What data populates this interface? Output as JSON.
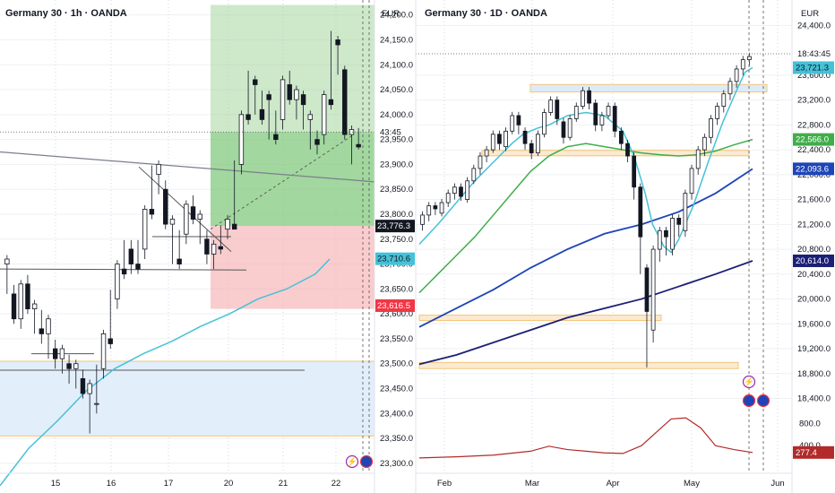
{
  "colors": {
    "cyan": "#45c1d8",
    "green": "#3fae49",
    "blue": "#1e44b8",
    "navy": "#1b1f75",
    "red": "#f23645",
    "osc": "#b22a2a",
    "target_zone": "#a5d69f",
    "stop_zone": "#f7b6b9",
    "zone_fill": "#e3eefb",
    "zone_border": "#f2c57a",
    "candle": "#131722"
  },
  "chart_data": [
    {
      "type": "candlestick",
      "title": "Germany 30 · 1h · OANDA",
      "currency": "EUR",
      "ylim": [
        23280,
        24230
      ],
      "y_ticks": [
        "24,200.0",
        "24,150.0",
        "24,100.0",
        "24,050.0",
        "24,000.0",
        "23,950.0",
        "23,900.0",
        "23,850.0",
        "23,800.0",
        "23,750.0",
        "23,700.0",
        "23,650.0",
        "23,600.0",
        "23,550.0",
        "23,500.0",
        "23,450.0",
        "23,400.0",
        "23,350.0",
        "23,300.0"
      ],
      "x_ticks": [
        "15",
        "16",
        "17",
        "20",
        "21",
        "22"
      ],
      "price_labels": [
        {
          "text": "43:45",
          "value": 23965
        },
        {
          "text": "23,776.3",
          "value": 23776.3
        },
        {
          "text": "23,710.6",
          "value": 23710.6
        },
        {
          "text": "23,616.5",
          "value": 23616.5
        }
      ],
      "position": {
        "entry": 23776.3,
        "target": 24220,
        "stop": 23610
      },
      "ma_cyan": [
        [
          0,
          23255
        ],
        [
          0.08,
          23330
        ],
        [
          0.16,
          23385
        ],
        [
          0.24,
          23445
        ],
        [
          0.32,
          23490
        ],
        [
          0.4,
          23520
        ],
        [
          0.48,
          23545
        ],
        [
          0.56,
          23575
        ],
        [
          0.64,
          23600
        ],
        [
          0.72,
          23630
        ],
        [
          0.8,
          23650
        ],
        [
          0.88,
          23680
        ],
        [
          0.92,
          23710
        ]
      ],
      "candles": [
        [
          23700,
          23710,
          23650,
          23640
        ],
        [
          23640,
          23650,
          23590,
          23580
        ],
        [
          23590,
          23660,
          23590,
          23570
        ],
        [
          23660,
          23670,
          23610,
          23600
        ],
        [
          23610,
          23620,
          23570,
          23560
        ],
        [
          23570,
          23600,
          23560,
          23540
        ],
        [
          23560,
          23590,
          23530,
          23510
        ],
        [
          23530,
          23540,
          23510,
          23490
        ],
        [
          23510,
          23530,
          23500,
          23480
        ],
        [
          23500,
          23510,
          23490,
          23460
        ],
        [
          23490,
          23500,
          23470,
          23450
        ],
        [
          23470,
          23480,
          23440,
          23430
        ],
        [
          23440,
          23460,
          23420,
          23360
        ],
        [
          23420,
          23490,
          23420,
          23400
        ],
        [
          23490,
          23560,
          23480,
          23470
        ],
        [
          23550,
          23640,
          23540,
          23530
        ],
        [
          23630,
          23700,
          23620,
          23610
        ],
        [
          23690,
          23740,
          23680,
          23670
        ],
        [
          23730,
          23700,
          23740,
          23680
        ],
        [
          23700,
          23740,
          23690,
          23680
        ],
        [
          23730,
          23810,
          23720,
          23710
        ],
        [
          23810,
          23890,
          23800,
          23790
        ],
        [
          23880,
          23900,
          23850,
          23840
        ],
        [
          23850,
          23860,
          23780,
          23770
        ],
        [
          23780,
          23790,
          23710,
          23700
        ],
        [
          23710,
          23760,
          23700,
          23690
        ],
        [
          23760,
          23820,
          23750,
          23740
        ],
        [
          23815,
          23830,
          23790,
          23780
        ],
        [
          23790,
          23800,
          23750,
          23740
        ],
        [
          23750,
          23760,
          23720,
          23700
        ],
        [
          23720,
          23740,
          23700,
          23690
        ],
        [
          23735,
          23770,
          23730,
          23720
        ],
        [
          23770,
          23790,
          23760,
          23750
        ],
        [
          23780,
          23900,
          23770,
          23770
        ],
        [
          23900,
          24000,
          23890,
          23880
        ],
        [
          24000,
          24080,
          23990,
          23980
        ],
        [
          24070,
          24060,
          24010,
          24000
        ],
        [
          24010,
          24040,
          23990,
          23980
        ],
        [
          24040,
          24030,
          23960,
          23950
        ],
        [
          23960,
          24000,
          23950,
          23940
        ],
        [
          23990,
          24070,
          23980,
          23970
        ],
        [
          24060,
          24080,
          24030,
          24020
        ],
        [
          24030,
          24050,
          24000,
          23990
        ],
        [
          24040,
          23990,
          24020,
          23970
        ],
        [
          23990,
          24000,
          23950,
          23930
        ],
        [
          23950,
          23960,
          23940,
          23920
        ],
        [
          23960,
          24040,
          23950,
          23940
        ],
        [
          24030,
          24160,
          24020,
          24010
        ],
        [
          24150,
          24140,
          24090,
          24080
        ],
        [
          24090,
          23960,
          23960,
          23950
        ],
        [
          23960,
          23970,
          23940,
          23900
        ],
        [
          23940,
          23965,
          23935,
          23930
        ]
      ]
    },
    {
      "type": "candlestick",
      "title": "Germany 30 · 1D · OANDA",
      "currency": "EUR",
      "ylim": [
        18350,
        24550
      ],
      "y_ticks": [
        "24,400.0",
        "23,600.0",
        "23,200.0",
        "22,800.0",
        "22,400.0",
        "22,000.0",
        "21,600.0",
        "21,200.0",
        "20,800.0",
        "20,400.0",
        "20,000.0",
        "19,600.0",
        "19,200.0",
        "18,800.0",
        "18,400.0"
      ],
      "x_ticks": [
        "Feb",
        "Mar",
        "Apr",
        "May",
        "Jun"
      ],
      "osc_ticks": [
        "800.0",
        "400.0"
      ],
      "price_labels": [
        {
          "text": "18:43:45",
          "value": 24005
        },
        {
          "text": "23,721.3",
          "value": 23721.3
        },
        {
          "text": "22,566.0",
          "value": 22566
        },
        {
          "text": "22,093.6",
          "value": 22093.6
        },
        {
          "text": "20,614.0",
          "value": 20614
        },
        {
          "text": "277.4",
          "value": 277.4
        }
      ],
      "zones": [
        {
          "from": 23330,
          "to": 23450
        },
        {
          "from": 22330,
          "to": 22390
        },
        {
          "from": 19680,
          "to": 19740
        },
        {
          "from": 18880,
          "to": 18980
        }
      ],
      "ema_cyan": [
        [
          0,
          20880
        ],
        [
          0.05,
          21200
        ],
        [
          0.1,
          21550
        ],
        [
          0.15,
          21900
        ],
        [
          0.2,
          22200
        ],
        [
          0.25,
          22500
        ],
        [
          0.28,
          22650
        ],
        [
          0.32,
          22750
        ],
        [
          0.35,
          22800
        ],
        [
          0.4,
          22950
        ],
        [
          0.45,
          23000
        ],
        [
          0.5,
          22950
        ],
        [
          0.55,
          22700
        ],
        [
          0.58,
          22300
        ],
        [
          0.61,
          21700
        ],
        [
          0.63,
          21200
        ],
        [
          0.66,
          20850
        ],
        [
          0.68,
          20750
        ],
        [
          0.7,
          20950
        ],
        [
          0.74,
          21500
        ],
        [
          0.78,
          22200
        ],
        [
          0.82,
          22850
        ],
        [
          0.86,
          23400
        ],
        [
          0.88,
          23650
        ],
        [
          0.9,
          23721
        ]
      ],
      "ma_green": [
        [
          0,
          20100
        ],
        [
          0.05,
          20400
        ],
        [
          0.1,
          20700
        ],
        [
          0.15,
          21000
        ],
        [
          0.2,
          21350
        ],
        [
          0.25,
          21700
        ],
        [
          0.3,
          22050
        ],
        [
          0.35,
          22300
        ],
        [
          0.4,
          22450
        ],
        [
          0.45,
          22500
        ],
        [
          0.5,
          22450
        ],
        [
          0.55,
          22400
        ],
        [
          0.6,
          22350
        ],
        [
          0.65,
          22320
        ],
        [
          0.7,
          22300
        ],
        [
          0.75,
          22320
        ],
        [
          0.8,
          22380
        ],
        [
          0.85,
          22480
        ],
        [
          0.9,
          22566
        ]
      ],
      "ma_blue": [
        [
          0,
          19550
        ],
        [
          0.1,
          19850
        ],
        [
          0.2,
          20150
        ],
        [
          0.3,
          20500
        ],
        [
          0.4,
          20800
        ],
        [
          0.5,
          21050
        ],
        [
          0.6,
          21200
        ],
        [
          0.7,
          21400
        ],
        [
          0.8,
          21700
        ],
        [
          0.9,
          22093
        ]
      ],
      "ma_navy": [
        [
          0,
          18950
        ],
        [
          0.1,
          19100
        ],
        [
          0.2,
          19300
        ],
        [
          0.3,
          19500
        ],
        [
          0.4,
          19700
        ],
        [
          0.5,
          19850
        ],
        [
          0.6,
          20000
        ],
        [
          0.7,
          20200
        ],
        [
          0.8,
          20400
        ],
        [
          0.9,
          20614
        ]
      ],
      "osc": [
        [
          0,
          180
        ],
        [
          0.1,
          200
        ],
        [
          0.2,
          230
        ],
        [
          0.3,
          300
        ],
        [
          0.35,
          390
        ],
        [
          0.4,
          330
        ],
        [
          0.45,
          300
        ],
        [
          0.5,
          270
        ],
        [
          0.55,
          260
        ],
        [
          0.6,
          400
        ],
        [
          0.65,
          700
        ],
        [
          0.68,
          880
        ],
        [
          0.72,
          900
        ],
        [
          0.76,
          720
        ],
        [
          0.8,
          400
        ],
        [
          0.85,
          330
        ],
        [
          0.9,
          277
        ]
      ],
      "candles": [
        [
          21200,
          21350,
          21150,
          21100
        ],
        [
          21350,
          21500,
          21300,
          21250
        ],
        [
          21500,
          21450,
          21380,
          21350
        ],
        [
          21380,
          21550,
          21350,
          21330
        ],
        [
          21550,
          21700,
          21500,
          21480
        ],
        [
          21700,
          21800,
          21650,
          21600
        ],
        [
          21800,
          21650,
          21600,
          21580
        ],
        [
          21600,
          21900,
          21580,
          21550
        ],
        [
          21900,
          22100,
          21850,
          21850
        ],
        [
          22100,
          22300,
          22050,
          22000
        ],
        [
          22300,
          22400,
          22250,
          22200
        ],
        [
          22400,
          22650,
          22350,
          22350
        ],
        [
          22650,
          22500,
          22450,
          22400
        ],
        [
          22450,
          22700,
          22400,
          22380
        ],
        [
          22700,
          22950,
          22650,
          22650
        ],
        [
          22950,
          22800,
          22700,
          22650
        ],
        [
          22700,
          22500,
          22450,
          22400
        ],
        [
          22500,
          22350,
          22300,
          22250
        ],
        [
          22350,
          22650,
          22300,
          22300
        ],
        [
          22650,
          23000,
          22600,
          22600
        ],
        [
          23000,
          23200,
          22950,
          22950
        ],
        [
          23200,
          22900,
          22850,
          22800
        ],
        [
          22850,
          22600,
          22550,
          22500
        ],
        [
          22600,
          22900,
          22550,
          22550
        ],
        [
          22900,
          23100,
          22850,
          22850
        ],
        [
          23100,
          23350,
          23050,
          23050
        ],
        [
          23350,
          23150,
          23100,
          23050
        ],
        [
          23150,
          22800,
          22750,
          22700
        ],
        [
          22800,
          22950,
          22750,
          22700
        ],
        [
          22950,
          23100,
          22900,
          22900
        ],
        [
          23100,
          22700,
          22650,
          22600
        ],
        [
          22700,
          22500,
          22450,
          22400
        ],
        [
          22500,
          22300,
          22250,
          22200
        ],
        [
          22300,
          21800,
          21700,
          21600
        ],
        [
          21800,
          21000,
          20500,
          20400
        ],
        [
          20500,
          19800,
          19500,
          18900
        ],
        [
          19500,
          20800,
          19400,
          19300
        ],
        [
          20800,
          21100,
          20700,
          20600
        ],
        [
          21100,
          21000,
          20800,
          20700
        ],
        [
          20800,
          21300,
          20750,
          20700
        ],
        [
          21300,
          21200,
          21100,
          21000
        ],
        [
          21100,
          21700,
          21050,
          21000
        ],
        [
          21700,
          22100,
          21650,
          21600
        ],
        [
          22100,
          22400,
          22050,
          22000
        ],
        [
          22400,
          22600,
          22350,
          22300
        ],
        [
          22600,
          22900,
          22550,
          22500
        ],
        [
          22900,
          23100,
          22850,
          22800
        ],
        [
          23100,
          23300,
          23050,
          23000
        ],
        [
          23300,
          23500,
          23250,
          23200
        ],
        [
          23500,
          23700,
          23450,
          23400
        ],
        [
          23700,
          23850,
          23650,
          23600
        ],
        [
          23850,
          23900,
          23800,
          23750
        ]
      ]
    }
  ]
}
